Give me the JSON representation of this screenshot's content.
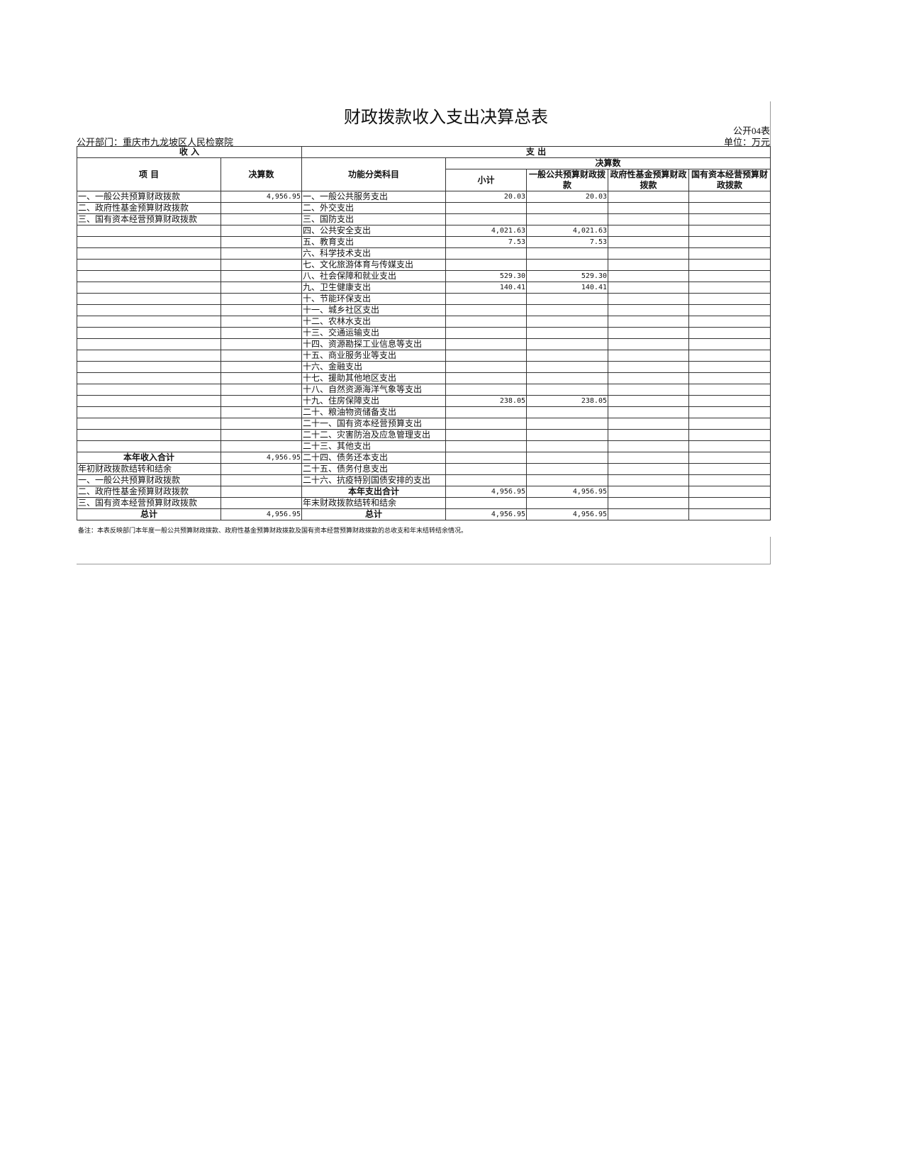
{
  "header": {
    "title": "财政拨款收入支出决算总表",
    "form_no": "公开04表",
    "department": "公开部门：重庆市九龙坡区人民检察院",
    "unit": "单位：万元"
  },
  "table": {
    "group_headers": {
      "income": "收    入",
      "expense": "支    出"
    },
    "column_headers": {
      "item": "项    目",
      "amount": "决算数",
      "function": "功能分类科目",
      "settlement": "决算数",
      "subtotal": "小计",
      "general": "一般公共预算财政拨款",
      "fund": "政府性基金预算财政拨款",
      "state": "国有资本经营预算财政拨款"
    },
    "rows": [
      {
        "income_item": "一、一般公共预算财政拨款",
        "income_amount": "4,956.95",
        "expense_item": "一、一般公共服务支出",
        "subtotal": "20.03",
        "general": "20.03"
      },
      {
        "income_item": "二、政府性基金预算财政拨款",
        "expense_item": "二、外交支出"
      },
      {
        "income_item": "三、国有资本经营预算财政拨款",
        "expense_item": "三、国防支出"
      },
      {
        "expense_item": "四、公共安全支出",
        "subtotal": "4,021.63",
        "general": "4,021.63"
      },
      {
        "expense_item": "五、教育支出",
        "subtotal": "7.53",
        "general": "7.53"
      },
      {
        "expense_item": "六、科学技术支出"
      },
      {
        "expense_item": "七、文化旅游体育与传媒支出"
      },
      {
        "expense_item": "八、社会保障和就业支出",
        "subtotal": "529.30",
        "general": "529.30"
      },
      {
        "expense_item": "九、卫生健康支出",
        "subtotal": "140.41",
        "general": "140.41"
      },
      {
        "expense_item": "十、节能环保支出"
      },
      {
        "expense_item": "十一、城乡社区支出"
      },
      {
        "expense_item": "十二、农林水支出"
      },
      {
        "expense_item": "十三、交通运输支出"
      },
      {
        "expense_item": "十四、资源勘探工业信息等支出"
      },
      {
        "expense_item": "十五、商业服务业等支出"
      },
      {
        "expense_item": "十六、金融支出"
      },
      {
        "expense_item": "十七、援助其他地区支出"
      },
      {
        "expense_item": "十八、自然资源海洋气象等支出"
      },
      {
        "expense_item": "十九、住房保障支出",
        "subtotal": "238.05",
        "general": "238.05"
      },
      {
        "expense_item": "二十、粮油物资储备支出"
      },
      {
        "expense_item": "二十一、国有资本经营预算支出"
      },
      {
        "expense_item": "二十二、灾害防治及应急管理支出"
      },
      {
        "expense_item": "二十三、其他支出"
      },
      {
        "income_total": "本年收入合计",
        "income_amount": "4,956.95",
        "expense_item": "二十四、债务还本支出"
      },
      {
        "income_item": "年初财政拨款结转和结余",
        "expense_item": "二十五、债务付息支出"
      },
      {
        "income_item": "一、一般公共预算财政拨款",
        "expense_item": "二十六、抗疫特别国债安排的支出"
      },
      {
        "income_item": "二、政府性基金预算财政拨款",
        "expense_total": "本年支出合计",
        "subtotal": "4,956.95",
        "general": "4,956.95"
      },
      {
        "income_item": "三、国有资本经营预算财政拨款",
        "expense_item": "年末财政拨款结转和结余"
      },
      {
        "income_total": "总计",
        "income_amount": "4,956.95",
        "expense_total": "总计",
        "subtotal": "4,956.95",
        "general": "4,956.95"
      }
    ]
  },
  "note": "备注：本表反映部门本年度一般公共预算财政拨款、政府性基金预算财政拨款及国有资本经营预算财政拨款的总收支和年末结转结余情况。"
}
